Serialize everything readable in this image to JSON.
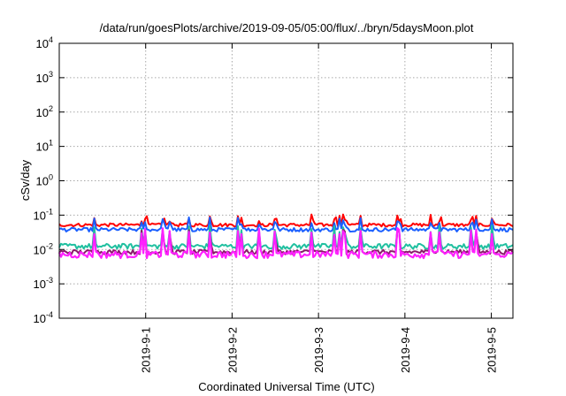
{
  "chart_data": {
    "type": "line",
    "title": "/data/run/goesPlots/archive/2019-09-05/05:00/flux/../bryn/5daysMoon.plot",
    "xlabel": "Coordinated Universal Time (UTC)",
    "ylabel": "cSv/day",
    "yscale": "log",
    "ylim": [
      0.0001,
      10000
    ],
    "xlim": [
      "2019-08-31 00:00",
      "2019-09-05 06:00"
    ],
    "grid": true,
    "legend": "none",
    "y_ticks": [
      {
        "value": 0.0001,
        "base": "10",
        "exp": "-4"
      },
      {
        "value": 0.001,
        "base": "10",
        "exp": "-3"
      },
      {
        "value": 0.01,
        "base": "10",
        "exp": "-2"
      },
      {
        "value": 0.1,
        "base": "10",
        "exp": "-1"
      },
      {
        "value": 1,
        "base": "10",
        "exp": "0"
      },
      {
        "value": 10,
        "base": "10",
        "exp": "1"
      },
      {
        "value": 100,
        "base": "10",
        "exp": "2"
      },
      {
        "value": 1000,
        "base": "10",
        "exp": "3"
      },
      {
        "value": 10000,
        "base": "10",
        "exp": "4"
      }
    ],
    "x_ticks": [
      {
        "date": "2019-09-01",
        "label": "2019-9-1"
      },
      {
        "date": "2019-09-02",
        "label": "2019-9-2"
      },
      {
        "date": "2019-09-03",
        "label": "2019-9-3"
      },
      {
        "date": "2019-09-04",
        "label": "2019-9-4"
      },
      {
        "date": "2019-09-05",
        "label": "2019-9-5"
      }
    ],
    "series": [
      {
        "color": "#ff0000",
        "base": 0.052,
        "spike": 0.085,
        "spread": 0.22
      },
      {
        "color": "#1a5fff",
        "base": 0.038,
        "spike": 0.07,
        "spread": 0.25
      },
      {
        "color": "#20c0a0",
        "base": 0.0125,
        "spike": 0.04,
        "spread": 0.35
      },
      {
        "color": "#8a1a6a",
        "base": 0.0085,
        "spike": 0.03,
        "spread": 0.3
      },
      {
        "color": "#ff20ff",
        "base": 0.0072,
        "spike": 0.035,
        "spread": 0.45
      }
    ]
  }
}
